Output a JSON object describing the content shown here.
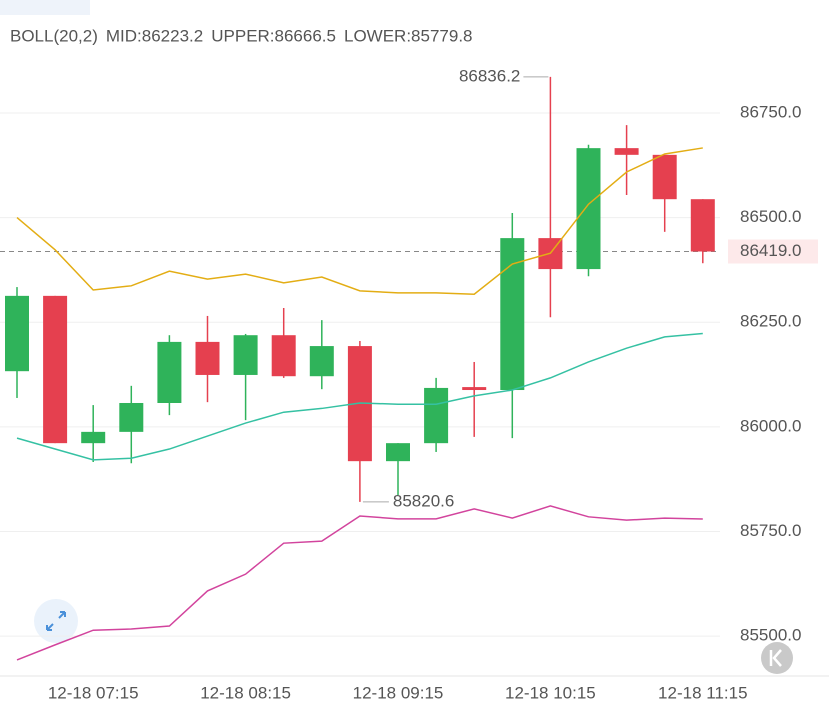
{
  "chart_data": {
    "type": "candlestick",
    "indicator": "BOLL(20,2)",
    "legend": [
      {
        "text": "MID:86223.2",
        "color": "#35c1a3"
      },
      {
        "text": "UPPER:86666.5",
        "color": "#e3ad14"
      },
      {
        "text": "LOWER:85779.8",
        "color": "#d2449d"
      }
    ],
    "categories": [
      null,
      null,
      "12-18 07:15",
      null,
      null,
      null,
      "12-18 08:15",
      null,
      null,
      null,
      "12-18 09:15",
      null,
      null,
      null,
      "12-18 10:15",
      null,
      null,
      null,
      "12-18 11:15"
    ],
    "open": [
      86133,
      86313,
      85961,
      85988,
      86057,
      86203,
      86124,
      86219,
      86121,
      86193,
      85918,
      85961,
      86095,
      86088,
      86451,
      86377,
      86666,
      86650,
      86544
    ],
    "high": [
      86334,
      86313,
      86052,
      86098,
      86219,
      86265,
      86222,
      86284,
      86255,
      86205,
      85961,
      86117,
      86155,
      86511,
      86836.2,
      86674,
      86721,
      86650,
      86544
    ],
    "low": [
      86069,
      85961,
      85916,
      85913,
      86028,
      86059,
      86016,
      86117,
      86090,
      85820.6,
      85837,
      85940,
      85976,
      85973,
      86262,
      86360,
      86554,
      86466,
      86391
    ],
    "close": [
      86313,
      85961,
      85988,
      86057,
      86203,
      86124,
      86219,
      86121,
      86193,
      85918,
      85961,
      86093,
      86088,
      86451,
      86377,
      86666,
      86650,
      86544,
      86419
    ],
    "up_color": "#2fb35a",
    "down_color": "#e5404f",
    "series": [
      {
        "name": "UPPER",
        "color": "#e3ad14",
        "values": [
          86500,
          86423,
          86327,
          86337,
          86372,
          86353,
          86365,
          86344,
          86358,
          86325,
          86320,
          86320,
          86317,
          86389,
          86415,
          86532,
          86609,
          86652,
          86666.5
        ]
      },
      {
        "name": "MID",
        "color": "#35c1a3",
        "values": [
          85973,
          85947,
          85921,
          85925,
          85947,
          85978,
          86009,
          86035,
          86044,
          86057,
          86054,
          86054,
          86074,
          86088,
          86117,
          86155,
          86188,
          86215,
          86223.2
        ]
      },
      {
        "name": "LOWER",
        "color": "#d2449d",
        "values": [
          85443,
          85479,
          85514,
          85517,
          85524,
          85608,
          85648,
          85722,
          85727,
          85787,
          85780,
          85780,
          85804,
          85782,
          85811,
          85785,
          85777,
          85782,
          85779.8
        ]
      }
    ],
    "ylim": [
      85407,
      87020
    ],
    "yticks": [
      {
        "value": 86750,
        "label": "86750.0"
      },
      {
        "value": 86500,
        "label": "86500.0"
      },
      {
        "value": 86250,
        "label": "86250.0"
      },
      {
        "value": 86000,
        "label": "86000.0"
      },
      {
        "value": 85750,
        "label": "85750.0"
      },
      {
        "value": 85500,
        "label": "85500.0"
      }
    ],
    "grid": true,
    "current_price": {
      "value": 86419,
      "label": "86419.0"
    },
    "annotations": [
      {
        "value": 86836.2,
        "label": "86836.2",
        "side": "high"
      },
      {
        "value": 85820.6,
        "label": "85820.6",
        "side": "low"
      }
    ]
  }
}
